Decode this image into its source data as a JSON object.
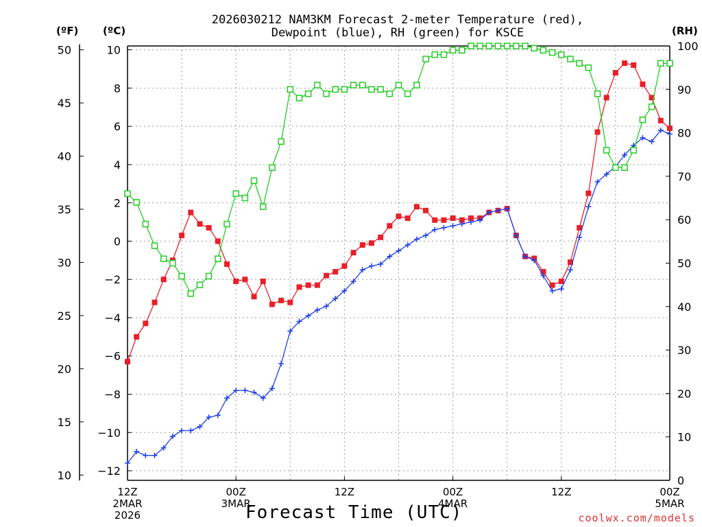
{
  "chart_data": {
    "type": "line",
    "title_line1": "2026030212 NAM3KM Forecast 2-meter Temperature (red),",
    "title_line2": "Dewpoint (blue), RH (green) for KSCE",
    "units": {
      "fahrenheit": "(ºF)",
      "celsius": "(ºC)",
      "rh": "(RH)"
    },
    "xlabel": "Forecast Time (UTC)",
    "x_ticks": [
      {
        "hour": 0,
        "lines": [
          "12Z",
          "2MAR",
          "2026"
        ]
      },
      {
        "hour": 12,
        "lines": [
          "00Z",
          "3MAR"
        ]
      },
      {
        "hour": 24,
        "lines": [
          "12Z"
        ]
      },
      {
        "hour": 36,
        "lines": [
          "00Z",
          "4MAR"
        ]
      },
      {
        "hour": 48,
        "lines": [
          "12Z"
        ]
      },
      {
        "hour": 60,
        "lines": [
          "00Z",
          "5MAR"
        ]
      }
    ],
    "xlim": [
      0,
      60
    ],
    "ylim_celsius": [
      -12.5,
      10.2
    ],
    "ylim_rh": [
      0,
      100
    ],
    "left_ticks_f": [
      "10",
      "15",
      "20",
      "25",
      "30",
      "35",
      "40",
      "45",
      "50"
    ],
    "celsius_ticks": [
      "−12",
      "−10",
      "−8",
      "−6",
      "−4",
      "−2",
      "0",
      "2",
      "4",
      "6",
      "8",
      "10"
    ],
    "rh_ticks": [
      "0",
      "10",
      "20",
      "30",
      "40",
      "50",
      "60",
      "70",
      "80",
      "90",
      "100"
    ],
    "grid": true,
    "credit": "coolwx.com/models",
    "series": [
      {
        "name": "Temperature",
        "color": "#e8202a",
        "marker": "filled-square",
        "axis": "celsius",
        "x": [
          0,
          1,
          2,
          3,
          4,
          5,
          6,
          7,
          8,
          9,
          10,
          11,
          12,
          13,
          14,
          15,
          16,
          17,
          18,
          19,
          20,
          21,
          22,
          23,
          24,
          25,
          26,
          27,
          28,
          29,
          30,
          31,
          32,
          33,
          34,
          35,
          36,
          37,
          38,
          39,
          40,
          41,
          42,
          43,
          44,
          45,
          46,
          47,
          48,
          49,
          50,
          51,
          52,
          53,
          54,
          55,
          56,
          57,
          58,
          59,
          60
        ],
        "values": [
          -6.3,
          -5.0,
          -4.3,
          -3.2,
          -2.0,
          -1.0,
          0.3,
          1.5,
          0.9,
          0.7,
          0.0,
          -1.2,
          -2.1,
          -2.0,
          -2.9,
          -2.1,
          -3.3,
          -3.1,
          -3.2,
          -2.4,
          -2.3,
          -2.3,
          -1.8,
          -1.6,
          -1.3,
          -0.6,
          -0.2,
          -0.1,
          0.2,
          0.8,
          1.3,
          1.2,
          1.8,
          1.6,
          1.1,
          1.1,
          1.2,
          1.1,
          1.2,
          1.2,
          1.5,
          1.6,
          1.7,
          0.3,
          -0.8,
          -0.9,
          -1.6,
          -2.3,
          -2.1,
          -1.1,
          0.7,
          2.5,
          5.7,
          7.5,
          8.8,
          9.3,
          9.2,
          8.2,
          7.5,
          6.3,
          5.9
        ]
      },
      {
        "name": "Dewpoint",
        "color": "#1f3fe8",
        "marker": "plus",
        "axis": "celsius",
        "x": [
          0,
          1,
          2,
          3,
          4,
          5,
          6,
          7,
          8,
          9,
          10,
          11,
          12,
          13,
          14,
          15,
          16,
          17,
          18,
          19,
          20,
          21,
          22,
          23,
          24,
          25,
          26,
          27,
          28,
          29,
          30,
          31,
          32,
          33,
          34,
          35,
          36,
          37,
          38,
          39,
          40,
          41,
          42,
          43,
          44,
          45,
          46,
          47,
          48,
          49,
          50,
          51,
          52,
          53,
          54,
          55,
          56,
          57,
          58,
          59,
          60
        ],
        "values": [
          -11.6,
          -11.0,
          -11.2,
          -11.2,
          -10.8,
          -10.2,
          -9.9,
          -9.9,
          -9.7,
          -9.2,
          -9.1,
          -8.2,
          -7.8,
          -7.8,
          -7.9,
          -8.2,
          -7.7,
          -6.4,
          -4.7,
          -4.2,
          -3.9,
          -3.6,
          -3.4,
          -3.0,
          -2.6,
          -2.1,
          -1.5,
          -1.3,
          -1.2,
          -0.8,
          -0.5,
          -0.2,
          0.1,
          0.3,
          0.6,
          0.7,
          0.8,
          0.9,
          1.0,
          1.1,
          1.5,
          1.6,
          1.7,
          0.3,
          -0.8,
          -1.0,
          -1.8,
          -2.6,
          -2.5,
          -1.5,
          0.2,
          1.8,
          3.1,
          3.5,
          3.9,
          4.5,
          5.0,
          5.4,
          5.2,
          5.8,
          5.6
        ]
      },
      {
        "name": "RH",
        "color": "#22cc22",
        "marker": "open-square",
        "axis": "rh",
        "x": [
          0,
          1,
          2,
          3,
          4,
          5,
          6,
          7,
          8,
          9,
          10,
          11,
          12,
          13,
          14,
          15,
          16,
          17,
          18,
          19,
          20,
          21,
          22,
          23,
          24,
          25,
          26,
          27,
          28,
          29,
          30,
          31,
          32,
          33,
          34,
          35,
          36,
          37,
          38,
          39,
          40,
          41,
          42,
          43,
          44,
          45,
          46,
          47,
          48,
          49,
          50,
          51,
          52,
          53,
          54,
          55,
          56,
          57,
          58,
          59,
          60
        ],
        "values": [
          66,
          64,
          59,
          54,
          51,
          50,
          47,
          43,
          45,
          47,
          51,
          59,
          66,
          65,
          69,
          63,
          72,
          78,
          90,
          88,
          89,
          91,
          89,
          90,
          90,
          91,
          91,
          90,
          90,
          89,
          91,
          89,
          91,
          97,
          98,
          98,
          99,
          99,
          100,
          100,
          100,
          100,
          100,
          100,
          100,
          99.5,
          99,
          98.5,
          98,
          97,
          96,
          95,
          89,
          76,
          72,
          72,
          76,
          83,
          86,
          96,
          96
        ]
      }
    ]
  }
}
